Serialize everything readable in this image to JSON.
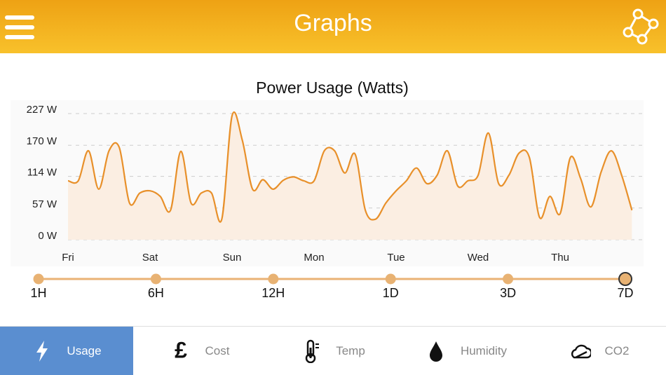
{
  "header": {
    "title": "Graphs"
  },
  "chart_data": {
    "type": "line",
    "title": "Power Usage (Watts)",
    "categories": [
      "Fri",
      null,
      null,
      null,
      null,
      null,
      null,
      null,
      "Sat",
      null,
      null,
      null,
      null,
      null,
      null,
      null,
      "Sun",
      null,
      null,
      null,
      null,
      null,
      null,
      null,
      "Mon",
      null,
      null,
      null,
      null,
      null,
      null,
      null,
      "Tue",
      null,
      null,
      null,
      null,
      null,
      null,
      null,
      "Wed",
      null,
      null,
      null,
      null,
      null,
      null,
      null,
      "Thu",
      null,
      null,
      null,
      null,
      null,
      null,
      null
    ],
    "series": [
      {
        "name": "Power",
        "color": "#e8902a",
        "fill": "#fbeee2",
        "values": [
          106,
          106,
          160,
          91,
          160,
          166,
          66,
          84,
          88,
          78,
          53,
          159,
          66,
          84,
          84,
          37,
          223,
          179,
          91,
          108,
          91,
          107,
          113,
          106,
          106,
          160,
          160,
          120,
          154,
          53,
          37,
          66,
          88,
          106,
          129,
          101,
          116,
          160,
          97,
          106,
          116,
          192,
          101,
          116,
          156,
          148,
          40,
          78,
          47,
          148,
          110,
          59,
          122,
          160,
          116,
          53
        ]
      }
    ],
    "ylim": [
      0,
      227
    ],
    "yticks": [
      {
        "value": 0,
        "label": "0 W"
      },
      {
        "value": 57,
        "label": "57 W"
      },
      {
        "value": 114,
        "label": "114 W"
      },
      {
        "value": 170,
        "label": "170 W"
      },
      {
        "value": 227,
        "label": "227 W"
      }
    ],
    "grid": true
  },
  "range_selector": {
    "options": [
      "1H",
      "6H",
      "12H",
      "1D",
      "3D",
      "7D"
    ],
    "selected": 5
  },
  "tabs": {
    "items": [
      "Usage",
      "Cost",
      "Temp",
      "Humidity",
      "CO2"
    ],
    "selected": 0
  }
}
